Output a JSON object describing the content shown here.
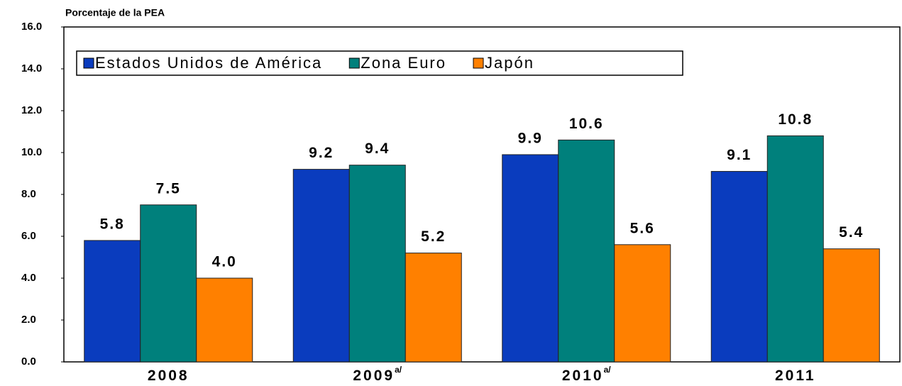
{
  "chart_data": {
    "type": "bar",
    "y_axis_label": "Porcentaje de la PEA",
    "categories": [
      "2008",
      "2009",
      "2010",
      "2011"
    ],
    "category_superscripts": [
      null,
      "a/",
      "a/",
      null
    ],
    "series": [
      {
        "name": "Estados Unidos de América",
        "color": "#0a3cbe",
        "values": [
          5.8,
          9.2,
          9.9,
          9.1
        ],
        "value_labels": [
          "5.8",
          "9.2",
          "9.9",
          "9.1"
        ]
      },
      {
        "name": "Zona Euro",
        "color": "#00807c",
        "values": [
          7.5,
          9.4,
          10.6,
          10.8
        ],
        "value_labels": [
          "7.5",
          "9.4",
          "10.6",
          "10.8"
        ]
      },
      {
        "name": "Japón",
        "color": "#ff8000",
        "values": [
          4.0,
          5.2,
          5.6,
          5.4
        ],
        "value_labels": [
          "4.0",
          "5.2",
          "5.6",
          "5.4"
        ]
      }
    ],
    "ylim": [
      0,
      16
    ],
    "yticks": [
      {
        "value": 0,
        "label": "0.0"
      },
      {
        "value": 2,
        "label": "2.0"
      },
      {
        "value": 4,
        "label": "4.0"
      },
      {
        "value": 6,
        "label": "6.0"
      },
      {
        "value": 8,
        "label": "8.0"
      },
      {
        "value": 10,
        "label": "10.0"
      },
      {
        "value": 12,
        "label": "12.0"
      },
      {
        "value": 14,
        "label": "14.0"
      },
      {
        "value": 16,
        "label": "16.0"
      }
    ],
    "legend": "upper left"
  }
}
